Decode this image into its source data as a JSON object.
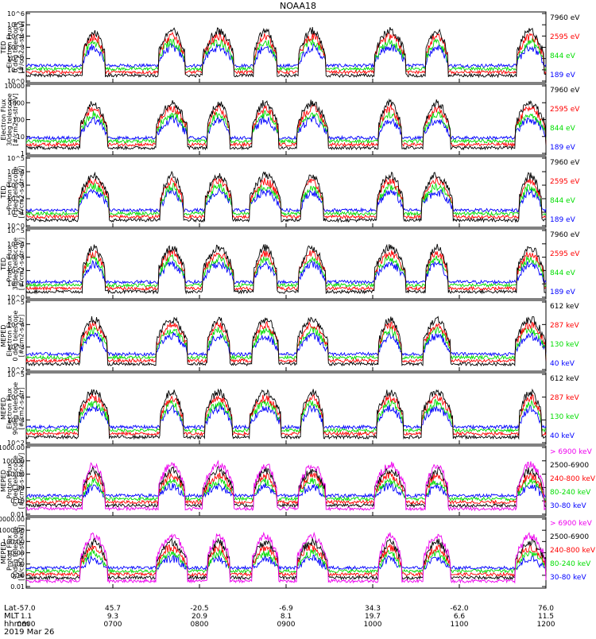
{
  "title": "NOAA18",
  "date_label": "2019 Mar 26",
  "x_axis": {
    "row_labels": [
      "Lat",
      "MLT",
      "hhmm"
    ],
    "ticks": [
      {
        "lat": "-57.0",
        "mlt": "1.1",
        "hhmm": "0600"
      },
      {
        "lat": "45.7",
        "mlt": "9.3",
        "hhmm": "0700"
      },
      {
        "lat": "-20.5",
        "mlt": "20.9",
        "hhmm": "0800"
      },
      {
        "lat": "-6.9",
        "mlt": "8.1",
        "hhmm": "0900"
      },
      {
        "lat": "34.3",
        "mlt": "19.7",
        "hhmm": "1000"
      },
      {
        "lat": "-62.0",
        "mlt": "6.6",
        "hhmm": "1100"
      },
      {
        "lat": "76.0",
        "mlt": "11.5",
        "hhmm": "1200"
      }
    ]
  },
  "chart_data": [
    {
      "type": "line",
      "id": "panel1",
      "ylabel_lines": [
        "TED",
        "Electron Flux",
        "0 deg telescope",
        "[#/cm2-s-str-eV]"
      ],
      "yscale": "log",
      "ytick_labels": [
        "10^0",
        "10^1",
        "10^2",
        "10^3",
        "10^4",
        "10^5",
        "10^6"
      ],
      "ylim": [
        1,
        1000000
      ],
      "series": [
        {
          "name": "7960 eV",
          "color": "#000000"
        },
        {
          "name": "2595 eV",
          "color": "#ff0000"
        },
        {
          "name": "844 eV",
          "color": "#00dd00"
        },
        {
          "name": "189 eV",
          "color": "#0000ff"
        }
      ]
    },
    {
      "type": "line",
      "id": "panel2",
      "ylabel_lines": [
        "Electron Flux",
        "30deg telescope",
        "[#/cm2-s-str-eV]"
      ],
      "yscale": "log",
      "ytick_labels": [
        "1",
        "10",
        "100",
        "1000",
        "10000"
      ],
      "ylim": [
        1,
        10000
      ],
      "series": [
        {
          "name": "7960 eV",
          "color": "#000000"
        },
        {
          "name": "2595 eV",
          "color": "#ff0000"
        },
        {
          "name": "844 eV",
          "color": "#00dd00"
        },
        {
          "name": "189 eV",
          "color": "#0000ff"
        }
      ]
    },
    {
      "type": "line",
      "id": "panel3",
      "ylabel_lines": [
        "TED",
        "Proton Flux",
        "0 deg telescope",
        "[#/cm2-s-str-eV]"
      ],
      "yscale": "log",
      "ytick_labels": [
        "10^0",
        "10^1",
        "10^2",
        "10^3",
        "10^4",
        "10^5"
      ],
      "ylim": [
        1,
        100000
      ],
      "series": [
        {
          "name": "7960 eV",
          "color": "#000000"
        },
        {
          "name": "2595 eV",
          "color": "#ff0000"
        },
        {
          "name": "844 eV",
          "color": "#00dd00"
        },
        {
          "name": "189 eV",
          "color": "#0000ff"
        }
      ]
    },
    {
      "type": "line",
      "id": "panel4",
      "ylabel_lines": [
        "TED",
        "Proton Flux",
        "30deg telescope",
        "[#/cm2-s-str-eV]"
      ],
      "yscale": "log",
      "ytick_labels": [
        "10^0",
        "10^1",
        "10^2",
        "10^3",
        "10^4",
        "10^5"
      ],
      "ylim": [
        1,
        100000
      ],
      "series": [
        {
          "name": "7960 eV",
          "color": "#000000"
        },
        {
          "name": "2595 eV",
          "color": "#ff0000"
        },
        {
          "name": "844 eV",
          "color": "#00dd00"
        },
        {
          "name": "189 eV",
          "color": "#0000ff"
        }
      ]
    },
    {
      "type": "line",
      "id": "panel5",
      "ylabel_lines": [
        "MEPED",
        "Electron Flux",
        "0 deg telescope",
        "[#/cm2-s-str]"
      ],
      "yscale": "log",
      "ytick_labels": [
        "10^2",
        "10^3",
        "10^4",
        "10^5"
      ],
      "ylim": [
        100,
        100000
      ],
      "series": [
        {
          "name": "612 keV",
          "color": "#000000"
        },
        {
          "name": "287 keV",
          "color": "#ff0000"
        },
        {
          "name": "130 keV",
          "color": "#00dd00"
        },
        {
          "name": "40 keV",
          "color": "#0000ff"
        }
      ]
    },
    {
      "type": "line",
      "id": "panel6",
      "ylabel_lines": [
        "MEPED",
        "Electron Flux",
        "90deg telescope",
        "[#/cm2-s-str]"
      ],
      "yscale": "log",
      "ytick_labels": [
        "10^2",
        "10^3",
        "10^4",
        "10^5"
      ],
      "ylim": [
        100,
        100000
      ],
      "series": [
        {
          "name": "612 keV",
          "color": "#000000"
        },
        {
          "name": "287 keV",
          "color": "#ff0000"
        },
        {
          "name": "130 keV",
          "color": "#00dd00"
        },
        {
          "name": "40 keV",
          "color": "#0000ff"
        }
      ]
    },
    {
      "type": "line",
      "id": "panel7",
      "ylabel_lines": [
        "MEPED",
        "Proton Flux",
        "0 deg telescope",
        "[#/cm2-s-str-keV]"
      ],
      "yscale": "log",
      "ytick_labels": [
        "0.01",
        "0.10",
        "1.00",
        "10.00",
        "100.00",
        "1000.00"
      ],
      "ylim": [
        0.01,
        1000
      ],
      "series": [
        {
          "name": "> 6900 keV",
          "color": "#ee00ee"
        },
        {
          "name": "2500-6900",
          "color": "#000000"
        },
        {
          "name": "240-800 keV",
          "color": "#ff0000"
        },
        {
          "name": "80-240 keV",
          "color": "#00dd00"
        },
        {
          "name": "30-80 keV",
          "color": "#0000ff"
        }
      ]
    },
    {
      "type": "line",
      "id": "panel8",
      "ylabel_lines": [
        "MEPED",
        "Proton Flux",
        "90deg telescope",
        "[#/cm2-s-str-keV]"
      ],
      "yscale": "log",
      "ytick_labels": [
        "0.01",
        "0.10",
        "1.00",
        "10.00",
        "100.00",
        "1000.00",
        "10000.00"
      ],
      "ylim": [
        0.01,
        10000
      ],
      "series": [
        {
          "name": "> 6900 keV",
          "color": "#ee00ee"
        },
        {
          "name": "2500-6900",
          "color": "#000000"
        },
        {
          "name": "240-800 keV",
          "color": "#ff0000"
        },
        {
          "name": "80-240 keV",
          "color": "#00dd00"
        },
        {
          "name": "30-80 keV",
          "color": "#0000ff"
        }
      ]
    }
  ]
}
